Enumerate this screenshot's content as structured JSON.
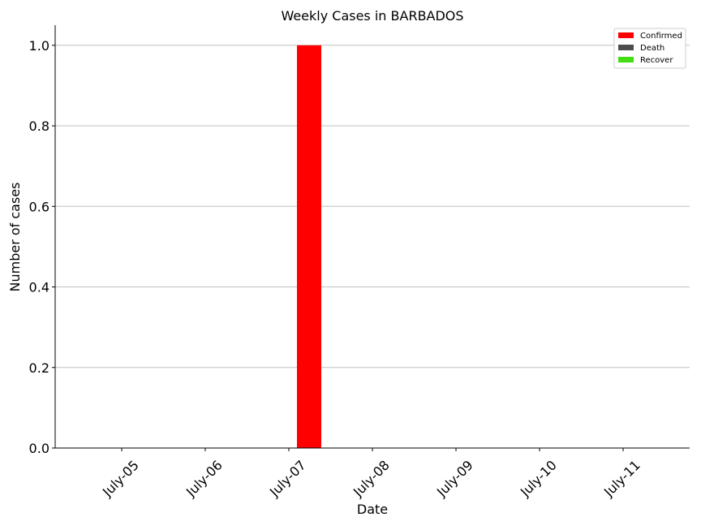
{
  "chart_data": {
    "type": "bar",
    "title": "Weekly Cases in BARBADOS",
    "xlabel": "Date",
    "ylabel": "Number of cases",
    "categories": [
      "July-05",
      "July-06",
      "July-07",
      "July-08",
      "July-09",
      "July-10",
      "July-11"
    ],
    "series": [
      {
        "name": "Confirmed",
        "color": "#ff0000",
        "values": [
          0,
          0,
          1,
          0,
          0,
          0,
          0
        ]
      },
      {
        "name": "Death",
        "color": "#4d4d4d",
        "values": [
          0,
          0,
          0,
          0,
          0,
          0,
          0
        ]
      },
      {
        "name": "Recover",
        "color": "#44dd11",
        "values": [
          0,
          0,
          0,
          0,
          0,
          0,
          0
        ]
      }
    ],
    "ylim": [
      0,
      1.05
    ],
    "yticks": [
      "0.0",
      "0.2",
      "0.4",
      "0.6",
      "0.8",
      "1.0"
    ],
    "grid": "horizontal",
    "legend_position": "top-right"
  }
}
